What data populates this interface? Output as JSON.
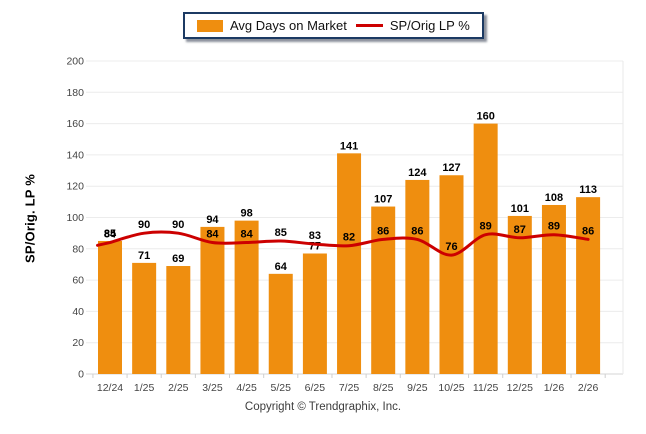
{
  "legend": {
    "items": [
      {
        "label": "Avg Days on Market",
        "swatch": "bar",
        "color": "#EF8E0F"
      },
      {
        "label": "SP/Orig LP %",
        "swatch": "line",
        "color": "#CC0000"
      }
    ]
  },
  "y_axis_title": "SP/Orig. LP %",
  "footer": "Copyright © Trendgraphix, Inc.",
  "colors": {
    "bar": "#EF8E0F",
    "line": "#CC0000",
    "value_label": "#000000",
    "tick_label": "#444444",
    "gridline": "#ECECEC",
    "baseline": "#D6D6D6",
    "legend_border": "#1C3A63",
    "background": "#FFFFFF"
  },
  "chart_data": {
    "type": "bar",
    "categories": [
      "12/24",
      "1/25",
      "2/25",
      "3/25",
      "4/25",
      "5/25",
      "6/25",
      "7/25",
      "8/25",
      "9/25",
      "10/25",
      "11/25",
      "12/25",
      "1/26",
      "2/26"
    ],
    "series": [
      {
        "name": "Avg Days on Market",
        "type": "bar",
        "color": "#EF8E0F",
        "values": [
          85,
          71,
          69,
          94,
          98,
          64,
          77,
          141,
          107,
          124,
          127,
          160,
          101,
          108,
          113
        ]
      },
      {
        "name": "SP/Orig LP %",
        "type": "line",
        "color": "#CC0000",
        "values": [
          84,
          90,
          90,
          84,
          84,
          85,
          83,
          82,
          86,
          86,
          76,
          89,
          87,
          89,
          86
        ]
      }
    ],
    "title": "",
    "xlabel": "",
    "ylabel": "SP/Orig. LP %",
    "ylim": [
      0,
      200
    ],
    "ytick_step": 20,
    "yticks": [
      0,
      20,
      40,
      60,
      80,
      100,
      120,
      140,
      160,
      180,
      200
    ],
    "grid": true,
    "legend_position": "top-center",
    "value_labels": true
  }
}
